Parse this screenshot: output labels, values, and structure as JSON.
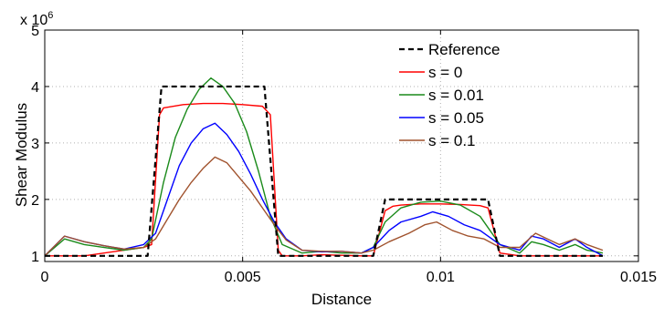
{
  "chart_data": {
    "type": "line",
    "xlabel": "Distance",
    "ylabel": "Shear Modulus",
    "y_multiplier": "x 10",
    "y_multiplier_exponent": "6",
    "xlim": [
      0,
      0.015
    ],
    "ylim": [
      900000,
      5000000
    ],
    "x_ticks": [
      0,
      0.005,
      0.01,
      0.015
    ],
    "x_tick_labels": [
      "0",
      "0.005",
      "0.01",
      "0.015"
    ],
    "y_ticks": [
      1000000,
      2000000,
      3000000,
      4000000,
      5000000
    ],
    "y_tick_labels": [
      "1",
      "2",
      "3",
      "4",
      "5"
    ],
    "grid": true,
    "legend_position": "top-right",
    "series": [
      {
        "name": "Reference",
        "color": "#000000",
        "dash": true,
        "points": [
          [
            0,
            1000000
          ],
          [
            0.0026,
            1000000
          ],
          [
            0.00295,
            4000000
          ],
          [
            0.00555,
            4000000
          ],
          [
            0.0059,
            1000000
          ],
          [
            0.0083,
            1000000
          ],
          [
            0.0086,
            2000000
          ],
          [
            0.0112,
            2000000
          ],
          [
            0.0115,
            1000000
          ],
          [
            0.0141,
            1000000
          ]
        ]
      },
      {
        "name": "s = 0",
        "color": "#ff0000",
        "dash": false,
        "points": [
          [
            0,
            1000000
          ],
          [
            0.0005,
            1000000
          ],
          [
            0.001,
            1000000
          ],
          [
            0.0015,
            1050000
          ],
          [
            0.002,
            1100000
          ],
          [
            0.0025,
            1150000
          ],
          [
            0.0027,
            1200000
          ],
          [
            0.0029,
            3500000
          ],
          [
            0.003,
            3620000
          ],
          [
            0.0035,
            3680000
          ],
          [
            0.004,
            3700000
          ],
          [
            0.0045,
            3700000
          ],
          [
            0.005,
            3680000
          ],
          [
            0.0055,
            3650000
          ],
          [
            0.0057,
            3500000
          ],
          [
            0.0059,
            1100000
          ],
          [
            0.006,
            1000000
          ],
          [
            0.0065,
            1000000
          ],
          [
            0.007,
            1020000
          ],
          [
            0.0075,
            1010000
          ],
          [
            0.008,
            1000000
          ],
          [
            0.0083,
            1000000
          ],
          [
            0.0086,
            1800000
          ],
          [
            0.0088,
            1880000
          ],
          [
            0.009,
            1900000
          ],
          [
            0.0095,
            1920000
          ],
          [
            0.01,
            1920000
          ],
          [
            0.0105,
            1910000
          ],
          [
            0.011,
            1890000
          ],
          [
            0.0112,
            1850000
          ],
          [
            0.0115,
            1050000
          ],
          [
            0.012,
            1000000
          ],
          [
            0.013,
            1000000
          ],
          [
            0.0141,
            1000000
          ]
        ]
      },
      {
        "name": "s = 0.01",
        "color": "#1a8a1a",
        "dash": false,
        "points": [
          [
            0,
            1000000
          ],
          [
            0.0005,
            1300000
          ],
          [
            0.001,
            1200000
          ],
          [
            0.0015,
            1150000
          ],
          [
            0.002,
            1100000
          ],
          [
            0.0025,
            1150000
          ],
          [
            0.0027,
            1300000
          ],
          [
            0.003,
            2300000
          ],
          [
            0.0033,
            3100000
          ],
          [
            0.0036,
            3600000
          ],
          [
            0.0039,
            3950000
          ],
          [
            0.0042,
            4150000
          ],
          [
            0.0045,
            4000000
          ],
          [
            0.0048,
            3700000
          ],
          [
            0.0051,
            3200000
          ],
          [
            0.0054,
            2500000
          ],
          [
            0.0057,
            1700000
          ],
          [
            0.006,
            1200000
          ],
          [
            0.0065,
            1050000
          ],
          [
            0.007,
            1080000
          ],
          [
            0.0075,
            1050000
          ],
          [
            0.008,
            1050000
          ],
          [
            0.0083,
            1150000
          ],
          [
            0.0086,
            1600000
          ],
          [
            0.009,
            1850000
          ],
          [
            0.0095,
            1950000
          ],
          [
            0.01,
            1970000
          ],
          [
            0.0105,
            1900000
          ],
          [
            0.011,
            1700000
          ],
          [
            0.0115,
            1200000
          ],
          [
            0.012,
            1050000
          ],
          [
            0.0123,
            1250000
          ],
          [
            0.0126,
            1200000
          ],
          [
            0.013,
            1100000
          ],
          [
            0.0134,
            1200000
          ],
          [
            0.0137,
            1100000
          ],
          [
            0.0141,
            1050000
          ]
        ]
      },
      {
        "name": "s = 0.05",
        "color": "#0000ff",
        "dash": false,
        "points": [
          [
            0,
            1000000
          ],
          [
            0.0005,
            1350000
          ],
          [
            0.001,
            1250000
          ],
          [
            0.0015,
            1180000
          ],
          [
            0.002,
            1120000
          ],
          [
            0.0025,
            1200000
          ],
          [
            0.0028,
            1400000
          ],
          [
            0.0031,
            2000000
          ],
          [
            0.0034,
            2600000
          ],
          [
            0.0037,
            3000000
          ],
          [
            0.004,
            3250000
          ],
          [
            0.0043,
            3350000
          ],
          [
            0.0046,
            3150000
          ],
          [
            0.0049,
            2850000
          ],
          [
            0.0052,
            2450000
          ],
          [
            0.0055,
            2000000
          ],
          [
            0.0058,
            1600000
          ],
          [
            0.0061,
            1300000
          ],
          [
            0.0065,
            1100000
          ],
          [
            0.007,
            1070000
          ],
          [
            0.0075,
            1080000
          ],
          [
            0.008,
            1050000
          ],
          [
            0.0083,
            1150000
          ],
          [
            0.0087,
            1450000
          ],
          [
            0.009,
            1600000
          ],
          [
            0.0095,
            1700000
          ],
          [
            0.0098,
            1780000
          ],
          [
            0.0102,
            1700000
          ],
          [
            0.0106,
            1550000
          ],
          [
            0.011,
            1450000
          ],
          [
            0.0115,
            1200000
          ],
          [
            0.012,
            1100000
          ],
          [
            0.0123,
            1350000
          ],
          [
            0.0126,
            1300000
          ],
          [
            0.013,
            1150000
          ],
          [
            0.0134,
            1300000
          ],
          [
            0.0137,
            1150000
          ],
          [
            0.0141,
            1000000
          ]
        ]
      },
      {
        "name": "s = 0.1",
        "color": "#a0522d",
        "dash": false,
        "points": [
          [
            0,
            1000000
          ],
          [
            0.0005,
            1350000
          ],
          [
            0.001,
            1250000
          ],
          [
            0.0015,
            1180000
          ],
          [
            0.002,
            1120000
          ],
          [
            0.0025,
            1150000
          ],
          [
            0.0028,
            1300000
          ],
          [
            0.0031,
            1650000
          ],
          [
            0.0034,
            2000000
          ],
          [
            0.0037,
            2300000
          ],
          [
            0.004,
            2550000
          ],
          [
            0.0043,
            2750000
          ],
          [
            0.0046,
            2650000
          ],
          [
            0.0049,
            2400000
          ],
          [
            0.0052,
            2150000
          ],
          [
            0.0055,
            1850000
          ],
          [
            0.0058,
            1550000
          ],
          [
            0.0061,
            1280000
          ],
          [
            0.0065,
            1100000
          ],
          [
            0.007,
            1080000
          ],
          [
            0.0075,
            1080000
          ],
          [
            0.008,
            1050000
          ],
          [
            0.0083,
            1100000
          ],
          [
            0.0087,
            1250000
          ],
          [
            0.0092,
            1400000
          ],
          [
            0.0096,
            1550000
          ],
          [
            0.0099,
            1600000
          ],
          [
            0.0103,
            1450000
          ],
          [
            0.0107,
            1350000
          ],
          [
            0.0111,
            1300000
          ],
          [
            0.0115,
            1150000
          ],
          [
            0.012,
            1150000
          ],
          [
            0.0124,
            1400000
          ],
          [
            0.0127,
            1300000
          ],
          [
            0.013,
            1200000
          ],
          [
            0.0134,
            1300000
          ],
          [
            0.0137,
            1200000
          ],
          [
            0.0141,
            1100000
          ]
        ]
      }
    ]
  }
}
